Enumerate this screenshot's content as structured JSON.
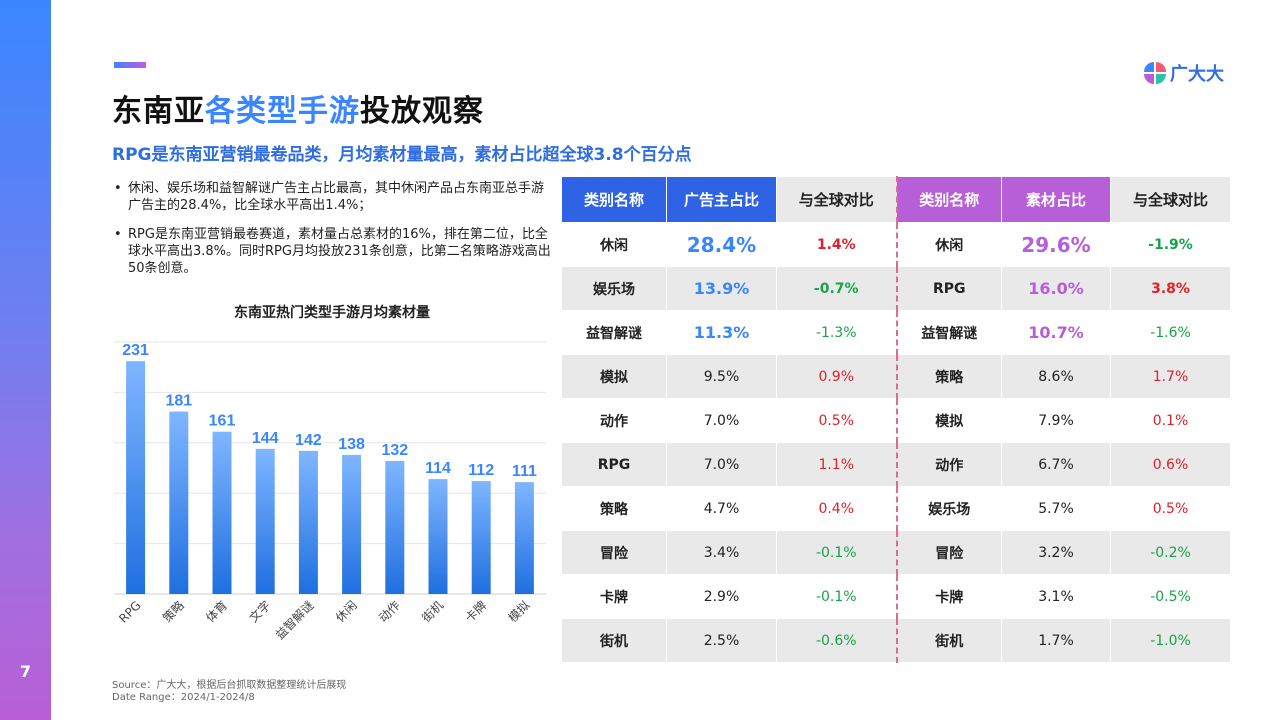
{
  "page_number": "7",
  "logo_text": "广大大",
  "title_parts": [
    "东南亚",
    "各类型手游",
    "投放观察"
  ],
  "subtitle": "RPG是东南亚营销最卷品类，月均素材量最高，素材占比超全球3.8个百分点",
  "bullets": [
    "休闲、娱乐场和益智解谜广告主占比最高，其中休闲产品占东南亚总手游广告主的28.4%，比全球水平高出1.4%；",
    "RPG是东南亚营销最卷赛道，素材量占总素材的16%，排在第二位，比全球水平高出3.8%。同时RPG月均投放231条创意，比第二名策略游戏高出50条创意。"
  ],
  "chart_data": {
    "type": "bar",
    "title": "东南亚热门类型手游月均素材量",
    "categories": [
      "RPG",
      "策略",
      "体育",
      "文字",
      "益智解谜",
      "休闲",
      "动作",
      "街机",
      "卡牌",
      "模拟"
    ],
    "values": [
      231,
      181,
      161,
      144,
      142,
      138,
      132,
      114,
      112,
      111
    ],
    "ylim": [
      0,
      250
    ],
    "grid": true,
    "colors": {
      "bar_top": "#7fb6ff",
      "bar_bottom": "#1f6fe0",
      "label": "#3a86ff"
    }
  },
  "table": {
    "headers": [
      "类别名称",
      "广告主占比",
      "与全球对比",
      "类别名称",
      "素材占比",
      "与全球对比"
    ],
    "left_rows": [
      {
        "cat": "休闲",
        "val": "28.4%",
        "cmp": "1.4%"
      },
      {
        "cat": "娱乐场",
        "val": "13.9%",
        "cmp": "-0.7%"
      },
      {
        "cat": "益智解谜",
        "val": "11.3%",
        "cmp": "-1.3%"
      },
      {
        "cat": "模拟",
        "val": "9.5%",
        "cmp": "0.9%"
      },
      {
        "cat": "动作",
        "val": "7.0%",
        "cmp": "0.5%"
      },
      {
        "cat": "RPG",
        "val": "7.0%",
        "cmp": "1.1%"
      },
      {
        "cat": "策略",
        "val": "4.7%",
        "cmp": "0.4%"
      },
      {
        "cat": "冒险",
        "val": "3.4%",
        "cmp": "-0.1%"
      },
      {
        "cat": "卡牌",
        "val": "2.9%",
        "cmp": "-0.1%"
      },
      {
        "cat": "街机",
        "val": "2.5%",
        "cmp": "-0.6%"
      }
    ],
    "right_rows": [
      {
        "cat": "休闲",
        "val": "29.6%",
        "cmp": "-1.9%"
      },
      {
        "cat": "RPG",
        "val": "16.0%",
        "cmp": "3.8%"
      },
      {
        "cat": "益智解谜",
        "val": "10.7%",
        "cmp": "-1.6%"
      },
      {
        "cat": "策略",
        "val": "8.6%",
        "cmp": "1.7%"
      },
      {
        "cat": "模拟",
        "val": "7.9%",
        "cmp": "0.1%"
      },
      {
        "cat": "动作",
        "val": "6.7%",
        "cmp": "0.6%"
      },
      {
        "cat": "娱乐场",
        "val": "5.7%",
        "cmp": "0.5%"
      },
      {
        "cat": "冒险",
        "val": "3.2%",
        "cmp": "-0.2%"
      },
      {
        "cat": "卡牌",
        "val": "3.1%",
        "cmp": "-0.5%"
      },
      {
        "cat": "街机",
        "val": "1.7%",
        "cmp": "-1.0%"
      }
    ],
    "colors": {
      "blue_header": "#2f63e6",
      "purple_header": "#b65fd8",
      "positive": "#e0202a",
      "negative": "#19a24a"
    }
  },
  "source_line": "Source：广大大，根据后台抓取数据整理统计后展现",
  "date_line": "Date Range：2024/1-2024/8"
}
